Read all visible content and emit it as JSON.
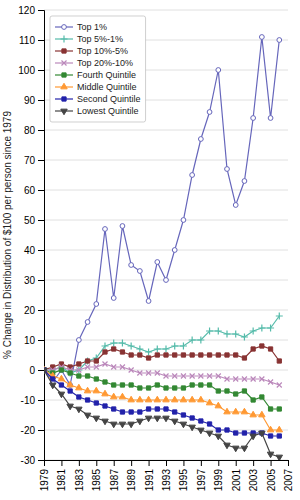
{
  "chart_data": {
    "type": "line",
    "ylabel": "% Change in Distribution of $100 per person since 1979",
    "x": [
      1979,
      1980,
      1981,
      1982,
      1983,
      1984,
      1985,
      1986,
      1987,
      1988,
      1989,
      1990,
      1991,
      1992,
      1993,
      1994,
      1995,
      1996,
      1997,
      1998,
      1999,
      2000,
      2001,
      2002,
      2003,
      2004,
      2005,
      2006
    ],
    "xlim": [
      1979,
      2007
    ],
    "xticks": [
      1979,
      1981,
      1983,
      1985,
      1987,
      1989,
      1991,
      1993,
      1995,
      1997,
      1999,
      2001,
      2003,
      2005,
      2007
    ],
    "ylim": [
      -30,
      120
    ],
    "yticks": [
      -30,
      -20,
      -10,
      0,
      10,
      20,
      30,
      40,
      50,
      60,
      70,
      80,
      90,
      100,
      110,
      120
    ],
    "grid": "y",
    "legend": "upper left",
    "series": [
      {
        "name": "Top 1%",
        "color": "#6666bb",
        "marker": "circle",
        "values": [
          0,
          -4,
          0,
          -5,
          10,
          16,
          22,
          47,
          24,
          48,
          35,
          33,
          23,
          36,
          30,
          40,
          50,
          65,
          77,
          86,
          100,
          67,
          55,
          63,
          84,
          111,
          84,
          110
        ]
      },
      {
        "name": "Top 5%-1%",
        "color": "#55bbaa",
        "marker": "plus",
        "values": [
          0,
          0,
          1,
          -1,
          0,
          3,
          4,
          8,
          9,
          9,
          8,
          7,
          6,
          7,
          7,
          8,
          8,
          10,
          10,
          13,
          13,
          12,
          12,
          11,
          13,
          14,
          14,
          18
        ]
      },
      {
        "name": "Top 10%-5%",
        "color": "#883333",
        "marker": "square",
        "values": [
          0,
          1,
          2,
          1,
          2,
          3,
          3,
          6,
          7,
          6,
          5,
          5,
          4,
          5,
          5,
          5,
          5,
          5,
          5,
          5,
          5,
          5,
          5,
          4,
          7,
          8,
          7,
          3
        ]
      },
      {
        "name": "Top 20%-10%",
        "color": "#bb88bb",
        "marker": "x",
        "values": [
          0,
          0,
          1,
          0,
          0,
          1,
          1,
          2,
          1,
          1,
          0,
          -1,
          -1,
          -1,
          -2,
          -2,
          -2,
          -2,
          -2,
          -2,
          -2,
          -3,
          -3,
          -3,
          -3,
          -3,
          -4,
          -5
        ]
      },
      {
        "name": "Fourth Quintile",
        "color": "#338833",
        "marker": "square",
        "values": [
          0,
          -1,
          0,
          -1,
          -2,
          -2,
          -3,
          -4,
          -5,
          -5,
          -5,
          -6,
          -6,
          -5,
          -6,
          -6,
          -6,
          -5,
          -5,
          -5,
          -7,
          -7,
          -8,
          -7,
          -10,
          -9,
          -13,
          -13
        ]
      },
      {
        "name": "Middle Quintile",
        "color": "#ff9933",
        "marker": "triangle-up",
        "values": [
          0,
          -2,
          -3,
          -5,
          -6,
          -7,
          -7,
          -8,
          -9,
          -9,
          -10,
          -10,
          -10,
          -10,
          -10,
          -10,
          -10,
          -10,
          -10,
          -11,
          -12,
          -14,
          -14,
          -14,
          -15,
          -15,
          -20,
          -20
        ]
      },
      {
        "name": "Second Quintile",
        "color": "#2222aa",
        "marker": "square",
        "values": [
          0,
          -3,
          -5,
          -7,
          -9,
          -10,
          -11,
          -12,
          -13,
          -14,
          -14,
          -14,
          -13,
          -13,
          -13,
          -14,
          -15,
          -16,
          -17,
          -18,
          -20,
          -20,
          -21,
          -21,
          -21,
          -21,
          -22,
          -22
        ]
      },
      {
        "name": "Lowest Quintile",
        "color": "#444444",
        "marker": "triangle-down",
        "values": [
          0,
          -5,
          -8,
          -12,
          -13,
          -15,
          -16,
          -17,
          -18,
          -18,
          -18,
          -17,
          -16,
          -16,
          -16,
          -17,
          -18,
          -19,
          -20,
          -21,
          -22,
          -25,
          -26,
          -26,
          -22,
          -21,
          -28,
          -29
        ]
      }
    ]
  }
}
